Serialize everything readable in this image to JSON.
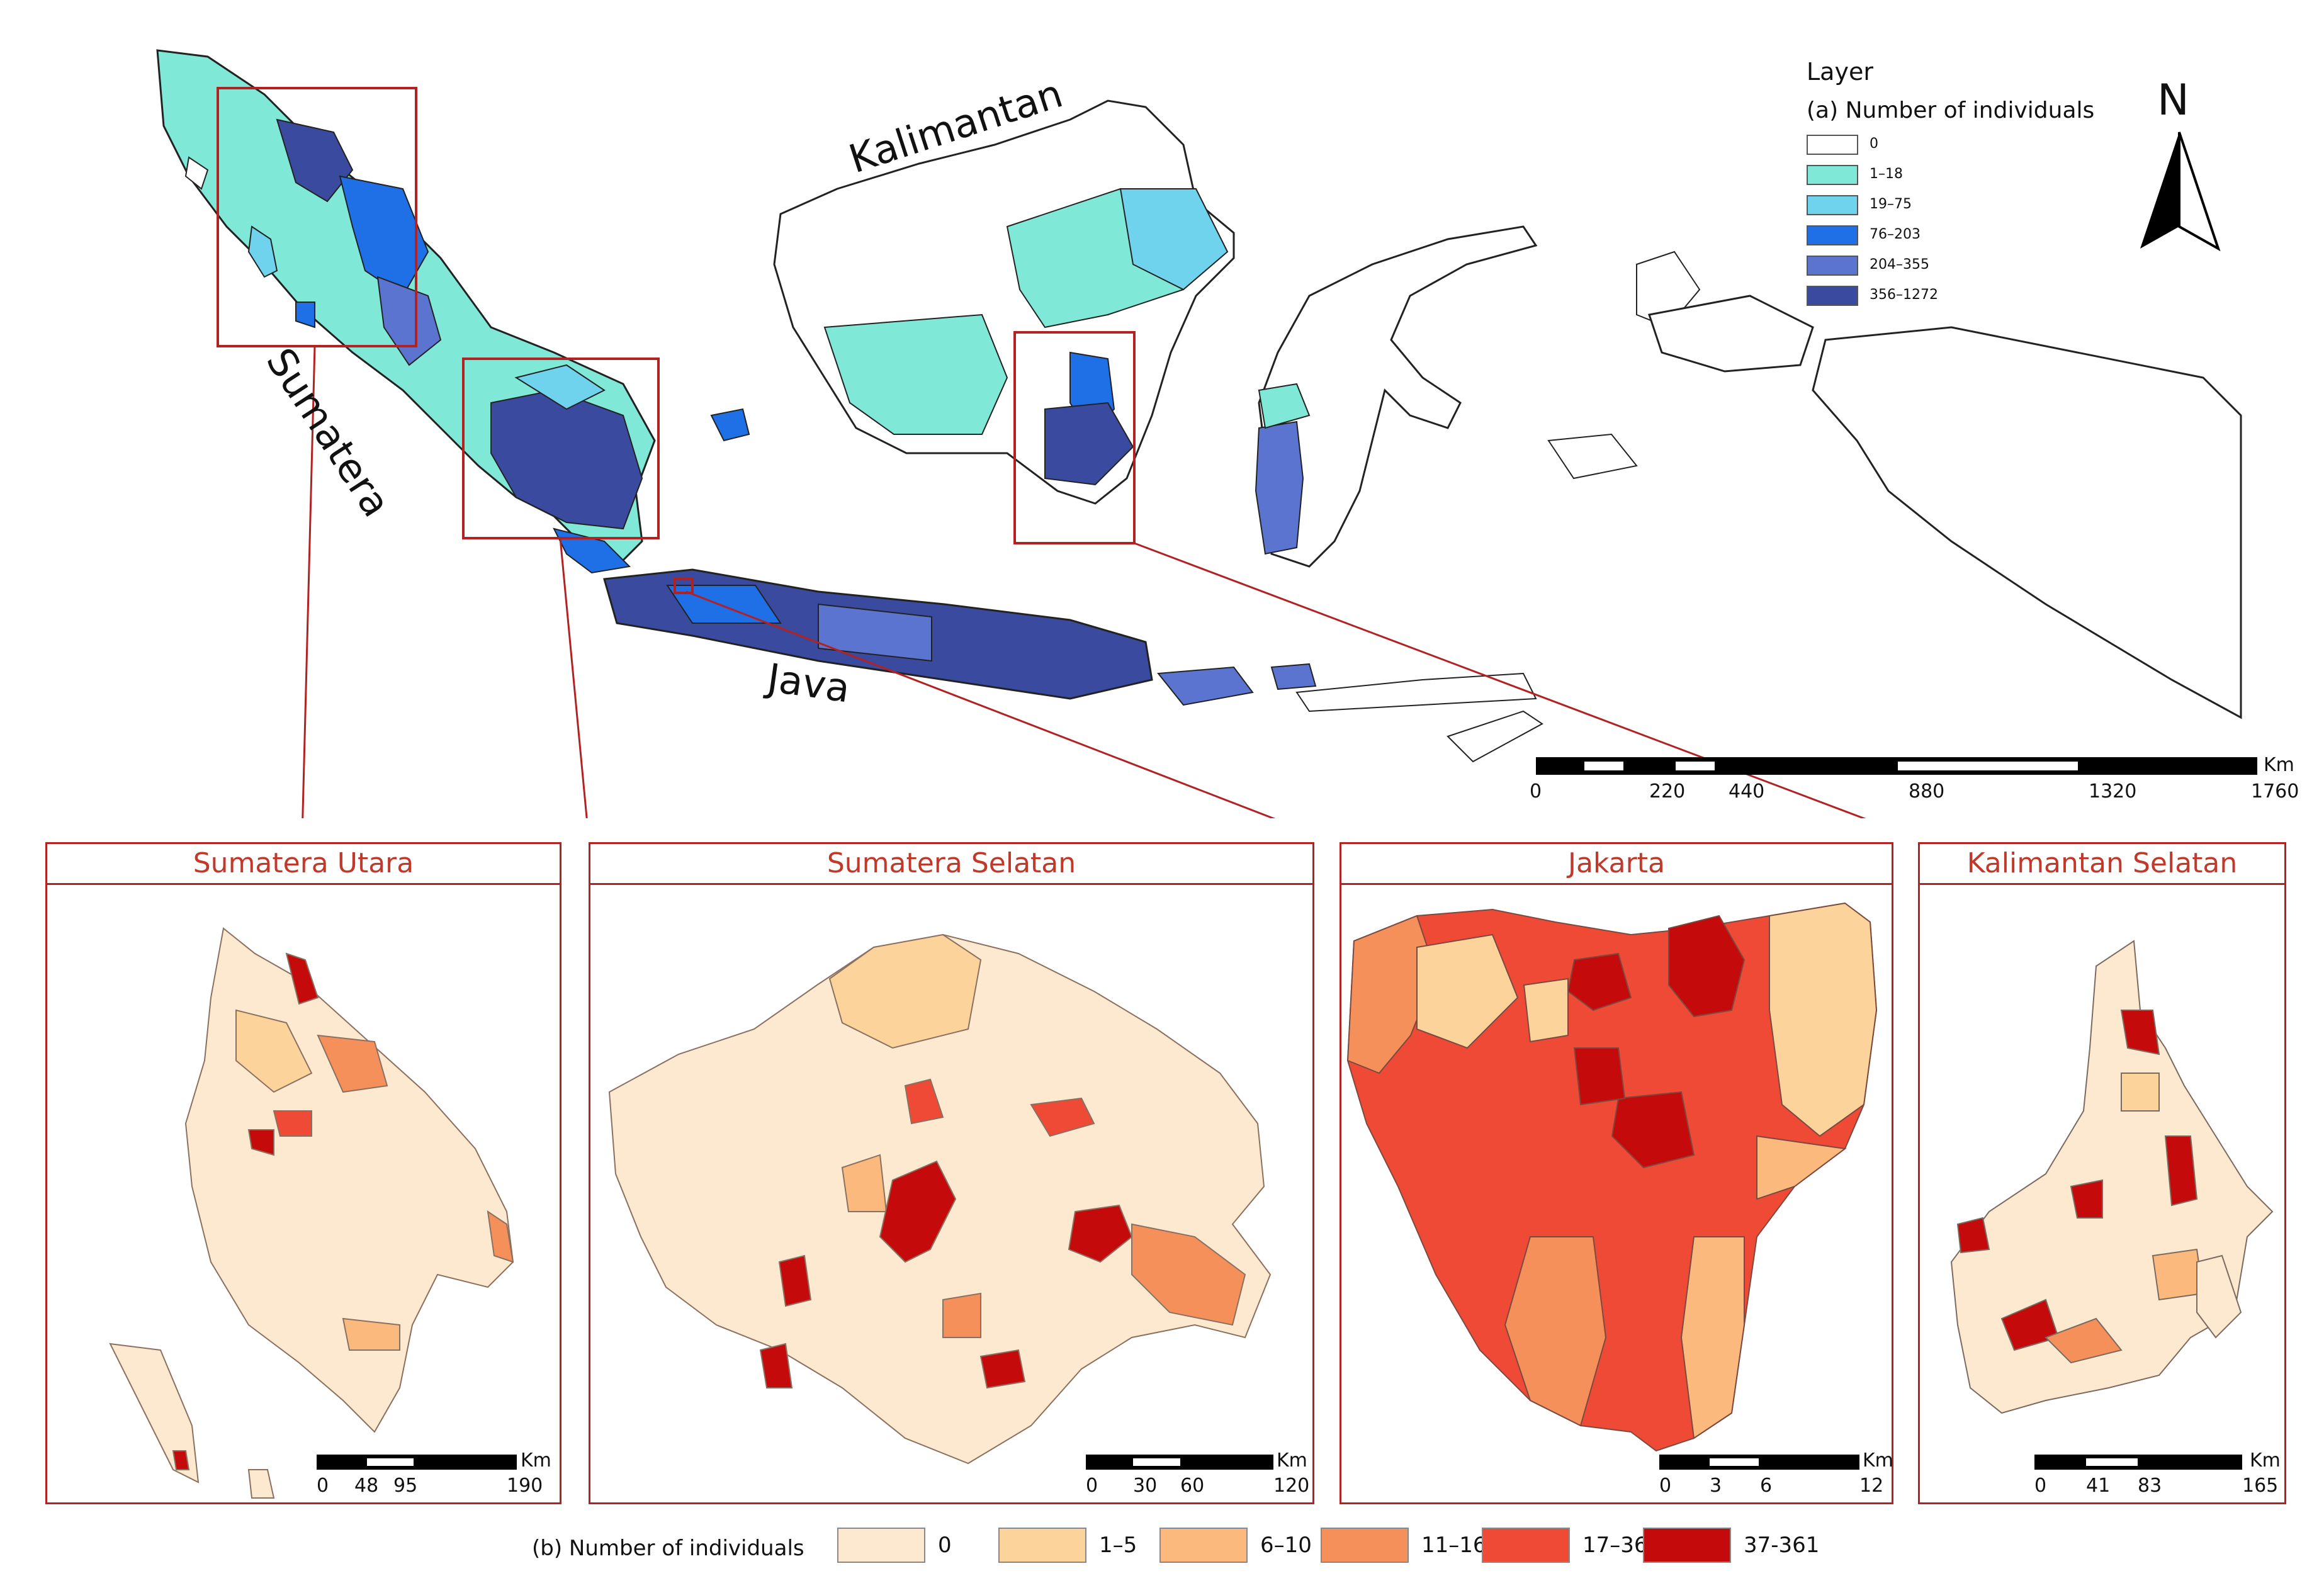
{
  "map": {
    "islands": {
      "kalimantan": "Kalimantan",
      "sumatera": "Sumatera",
      "java": "Java"
    },
    "north_arrow": "N",
    "legend_a": {
      "title": "Layer",
      "subtitle": "(a) Number of individuals",
      "items": [
        {
          "label": "0",
          "color": "#ffffff"
        },
        {
          "label": "1–18",
          "color": "#7fe8d6"
        },
        {
          "label": "19–75",
          "color": "#6fd3ee"
        },
        {
          "label": "76–203",
          "color": "#1f6fe6"
        },
        {
          "label": "204–355",
          "color": "#5b74d0"
        },
        {
          "label": "356–1272",
          "color": "#3a4a9e"
        }
      ]
    },
    "scalebar": {
      "unit": "Km",
      "ticks": [
        "0",
        "220",
        "440",
        "880",
        "1320",
        "1760"
      ]
    }
  },
  "panels": [
    {
      "title": "Sumatera Utara",
      "unit": "Km",
      "ticks": [
        "0",
        "48",
        "95",
        "190"
      ]
    },
    {
      "title": "Sumatera Selatan",
      "unit": "Km",
      "ticks": [
        "0",
        "30",
        "60",
        "120"
      ]
    },
    {
      "title": "Jakarta",
      "unit": "Km",
      "ticks": [
        "0",
        "3",
        "6",
        "12"
      ]
    },
    {
      "title": "Kalimantan Selatan",
      "unit": "Km",
      "ticks": [
        "0",
        "41",
        "83",
        "165"
      ]
    }
  ],
  "legend_b": {
    "label": "(b) Number of individuals",
    "items": [
      {
        "label": "0",
        "color": "#fde8d0"
      },
      {
        "label": "1–5",
        "color": "#fcd39a"
      },
      {
        "label": "6–10",
        "color": "#fbb97e"
      },
      {
        "label": "11–16",
        "color": "#f6905a"
      },
      {
        "label": "17–36",
        "color": "#ef4a35"
      },
      {
        "label": "37-361",
        "color": "#c40a0a"
      }
    ]
  },
  "colors": {
    "frame": "#b22222",
    "outline": "#222222"
  }
}
